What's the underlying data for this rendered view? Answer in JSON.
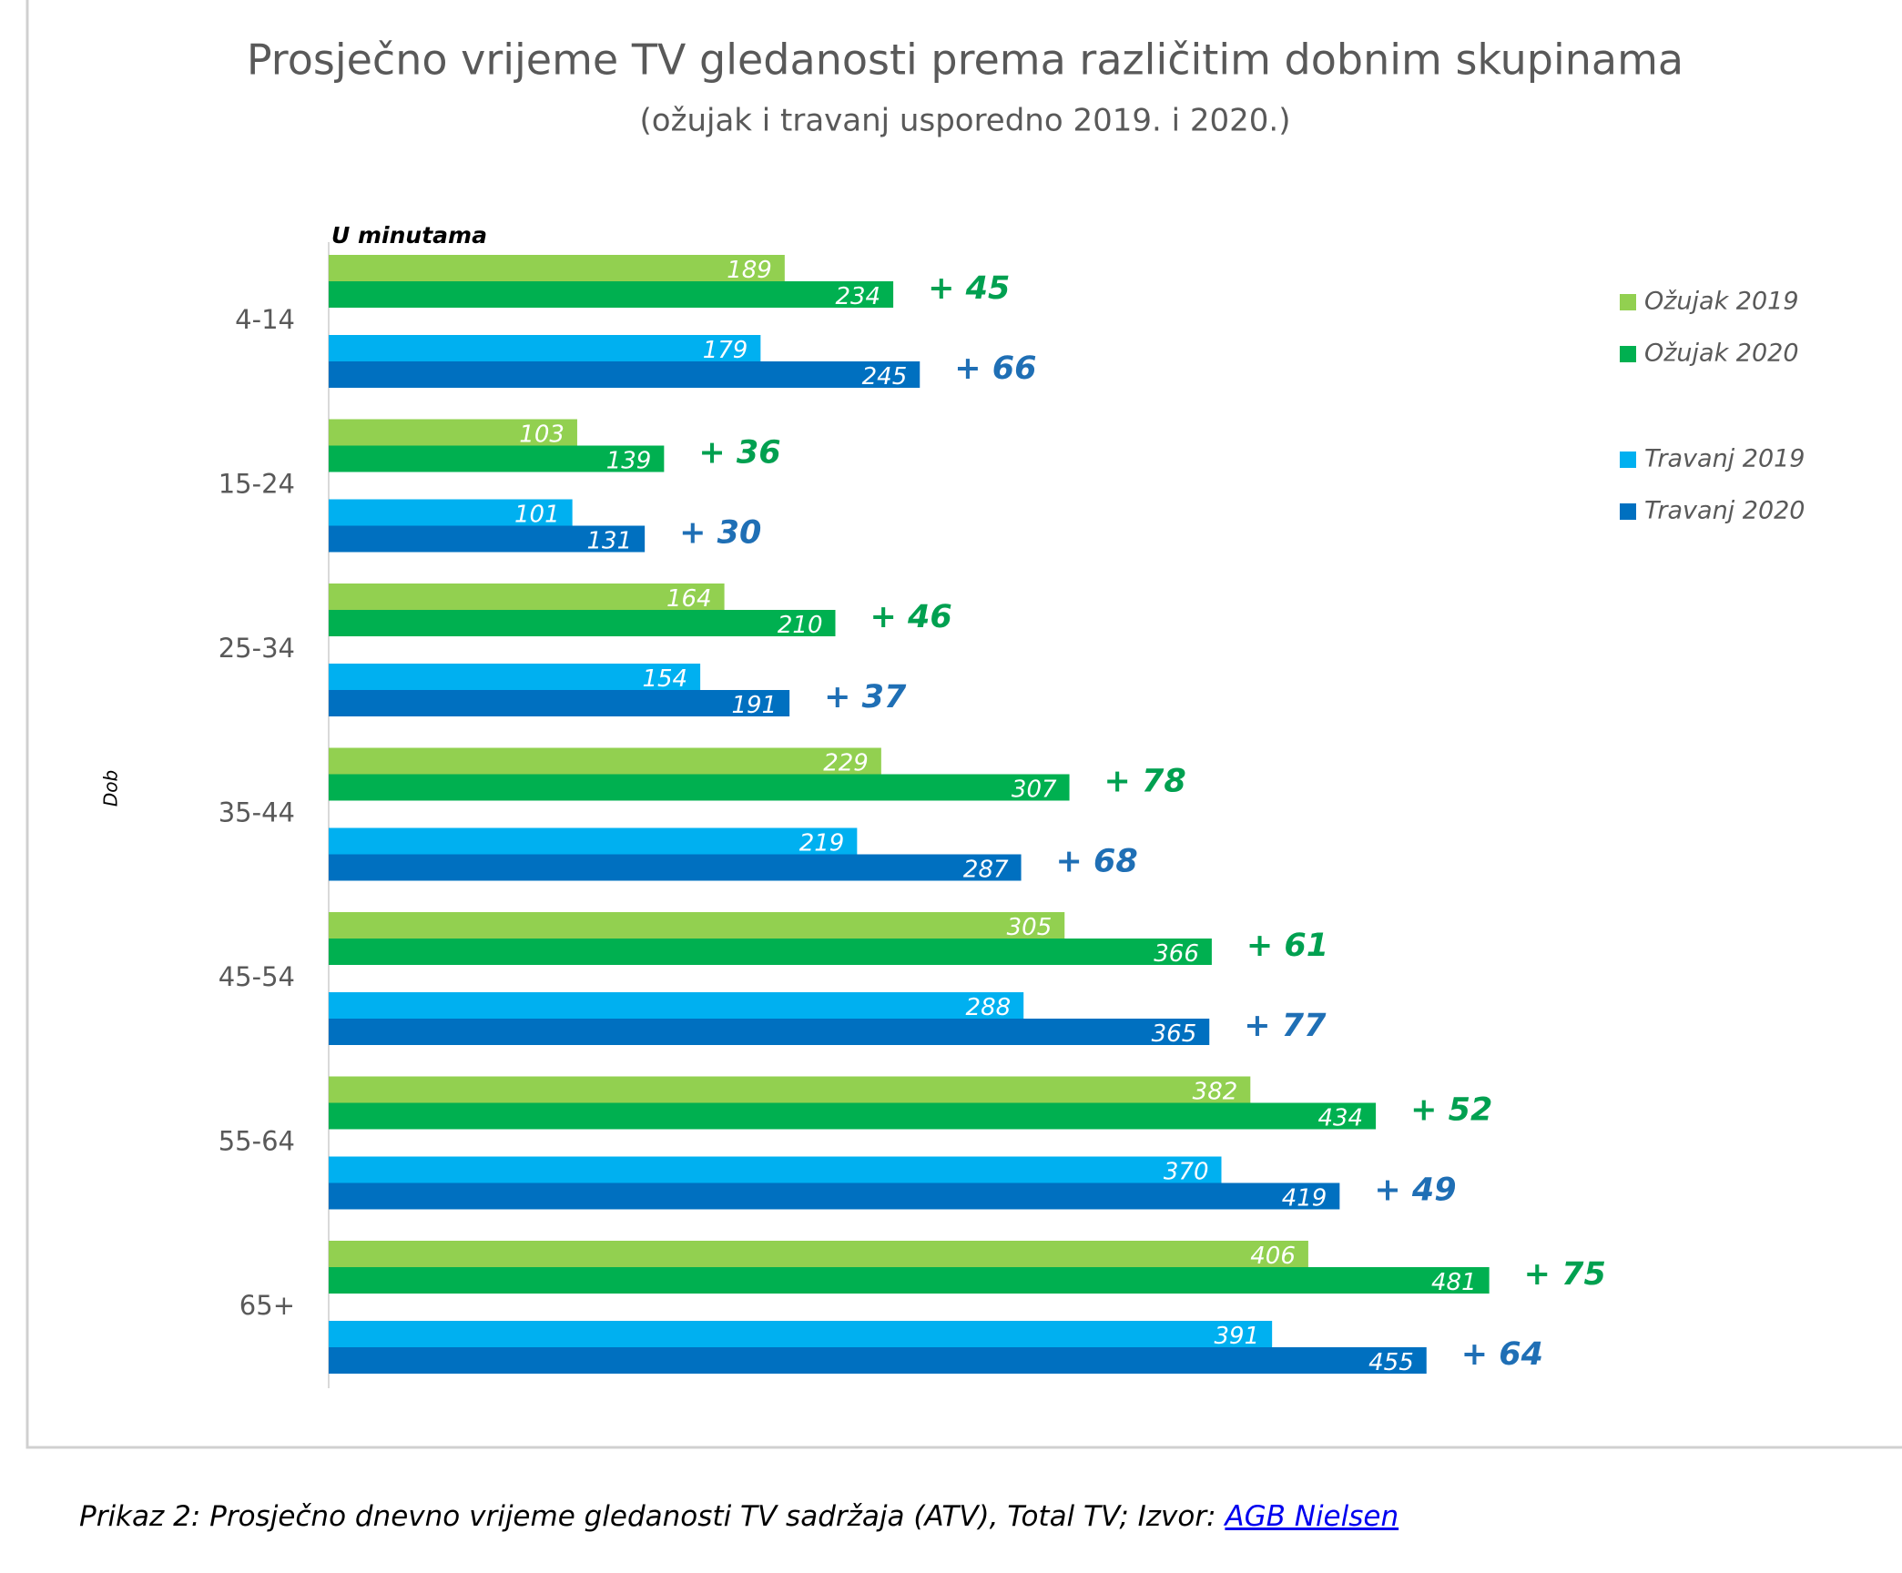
{
  "chart_data": {
    "type": "bar",
    "title": "Prosječno vrijeme TV gledanosti prema različitim dobnim skupinama",
    "subtitle": "(ožujak i travanj usporedno 2019. i 2020.)",
    "x_label": "U minutama",
    "y_label": "Dob",
    "categories": [
      "4-14",
      "15-24",
      "25-34",
      "35-44",
      "45-54",
      "55-64",
      "65+"
    ],
    "series": [
      {
        "name": "Ožujak 2019",
        "color": "#92d050",
        "values": [
          189,
          103,
          164,
          229,
          305,
          382,
          406
        ]
      },
      {
        "name": "Ožujak 2020",
        "color": "#00b050",
        "values": [
          234,
          139,
          210,
          307,
          366,
          434,
          481
        ]
      },
      {
        "name": "Travanj 2019",
        "color": "#00b0f0",
        "values": [
          179,
          101,
          154,
          219,
          288,
          370,
          391
        ]
      },
      {
        "name": "Travanj 2020",
        "color": "#0070c0",
        "values": [
          245,
          131,
          191,
          287,
          365,
          419,
          455
        ]
      }
    ],
    "annotations": [
      {
        "color": "#00a050",
        "labels": [
          "+ 45",
          "+ 36",
          "+ 46",
          "+ 78",
          "+ 61",
          "+ 52",
          "+ 75"
        ]
      },
      {
        "color": "#1f6fb5",
        "labels": [
          "+ 66",
          "+ 30",
          "+ 37",
          "+ 68",
          "+ 77",
          "+ 49",
          "+ 64"
        ]
      }
    ],
    "xlim": [
      0,
      600
    ],
    "legend": "right"
  },
  "caption": {
    "text": "Prikaz 2: Prosječno dnevno vrijeme gledanosti TV sadržaja (ATV), Total TV; Izvor: ",
    "link": "AGB Nielsen"
  }
}
